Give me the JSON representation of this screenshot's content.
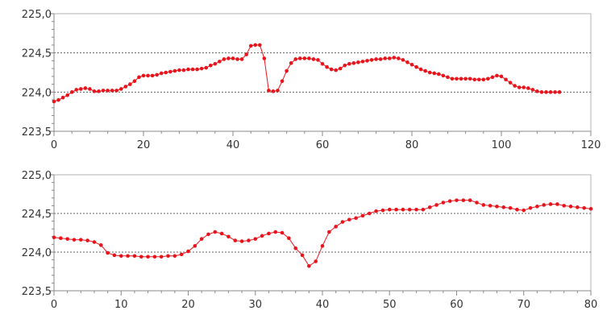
{
  "colors": {
    "series": "#e8141b",
    "grid": "#666666",
    "axis": "#888888",
    "background": "#ffffff"
  },
  "chart_data": [
    {
      "type": "line",
      "title": "",
      "xlabel": "",
      "ylabel": "",
      "xlim": [
        0,
        120
      ],
      "ylim": [
        223.5,
        225.0
      ],
      "xticks": [
        0,
        20,
        40,
        60,
        80,
        100,
        120
      ],
      "xtick_labels": [
        "0",
        "20",
        "40",
        "60",
        "80",
        "100",
        "120"
      ],
      "yticks": [
        223.5,
        224.0,
        224.5,
        225.0
      ],
      "ytick_labels": [
        "223,5",
        "224,0",
        "224,5",
        "225,0"
      ],
      "grid": "horizontal dashed at 224,0 and 224,5",
      "legend": "none",
      "series": [
        {
          "color": "#e8141b",
          "x": [
            0,
            1,
            2,
            3,
            4,
            5,
            6,
            7,
            8,
            9,
            10,
            11,
            12,
            13,
            14,
            15,
            16,
            17,
            18,
            19,
            20,
            21,
            22,
            23,
            24,
            25,
            26,
            27,
            28,
            29,
            30,
            31,
            32,
            33,
            34,
            35,
            36,
            37,
            38,
            39,
            40,
            41,
            42,
            43,
            44,
            45,
            46,
            47,
            48,
            49,
            50,
            51,
            52,
            53,
            54,
            55,
            56,
            57,
            58,
            59,
            60,
            61,
            62,
            63,
            64,
            65,
            66,
            67,
            68,
            69,
            70,
            71,
            72,
            73,
            74,
            75,
            76,
            77,
            78,
            79,
            80,
            81,
            82,
            83,
            84,
            85,
            86,
            87,
            88,
            89,
            90,
            91,
            92,
            93,
            94,
            95,
            96,
            97,
            98,
            99,
            100,
            101,
            102,
            103,
            104,
            105,
            106,
            107,
            108,
            109,
            110,
            111,
            112,
            113
          ],
          "y": [
            223.88,
            223.9,
            223.93,
            223.96,
            224.0,
            224.03,
            224.04,
            224.05,
            224.04,
            224.01,
            224.01,
            224.02,
            224.02,
            224.02,
            224.02,
            224.04,
            224.07,
            224.1,
            224.14,
            224.19,
            224.21,
            224.21,
            224.21,
            224.22,
            224.24,
            224.25,
            224.26,
            224.27,
            224.28,
            224.28,
            224.29,
            224.29,
            224.29,
            224.3,
            224.31,
            224.34,
            224.36,
            224.39,
            224.42,
            224.43,
            224.43,
            224.42,
            224.42,
            224.48,
            224.59,
            224.6,
            224.6,
            224.43,
            224.02,
            224.01,
            224.02,
            224.14,
            224.27,
            224.37,
            224.42,
            224.43,
            224.43,
            224.43,
            224.42,
            224.41,
            224.36,
            224.32,
            224.29,
            224.28,
            224.3,
            224.34,
            224.36,
            224.37,
            224.38,
            224.39,
            224.4,
            224.41,
            224.42,
            224.42,
            224.43,
            224.43,
            224.44,
            224.43,
            224.41,
            224.38,
            224.35,
            224.32,
            224.29,
            224.27,
            224.25,
            224.24,
            224.23,
            224.21,
            224.19,
            224.17,
            224.17,
            224.17,
            224.17,
            224.17,
            224.16,
            224.16,
            224.16,
            224.17,
            224.19,
            224.21,
            224.2,
            224.16,
            224.12,
            224.08,
            224.06,
            224.06,
            224.05,
            224.03,
            224.01,
            224.0,
            224.0,
            224.0,
            224.0,
            224.0
          ]
        }
      ]
    },
    {
      "type": "line",
      "title": "",
      "xlabel": "",
      "ylabel": "",
      "xlim": [
        0,
        80
      ],
      "ylim": [
        223.5,
        225.0
      ],
      "xticks": [
        0,
        10,
        20,
        30,
        40,
        50,
        60,
        70,
        80
      ],
      "xtick_labels": [
        "0",
        "10",
        "20",
        "30",
        "40",
        "50",
        "60",
        "70",
        "80"
      ],
      "yticks": [
        223.5,
        224.0,
        224.5,
        225.0
      ],
      "ytick_labels": [
        "223,5",
        "224,0",
        "224,5",
        "225,0"
      ],
      "grid": "horizontal dashed at 224,0 and 224,5",
      "legend": "none",
      "series": [
        {
          "color": "#e8141b",
          "x": [
            0,
            1,
            2,
            3,
            4,
            5,
            6,
            7,
            8,
            9,
            10,
            11,
            12,
            13,
            14,
            15,
            16,
            17,
            18,
            19,
            20,
            21,
            22,
            23,
            24,
            25,
            26,
            27,
            28,
            29,
            30,
            31,
            32,
            33,
            34,
            35,
            36,
            37,
            38,
            39,
            40,
            41,
            42,
            43,
            44,
            45,
            46,
            47,
            48,
            49,
            50,
            51,
            52,
            53,
            54,
            55,
            56,
            57,
            58,
            59,
            60,
            61,
            62,
            63,
            64,
            65,
            66,
            67,
            68,
            69,
            70,
            71,
            72,
            73,
            74,
            75,
            76,
            77,
            78,
            79,
            80
          ],
          "y": [
            224.19,
            224.18,
            224.17,
            224.16,
            224.16,
            224.15,
            224.13,
            224.09,
            223.99,
            223.96,
            223.95,
            223.95,
            223.95,
            223.94,
            223.94,
            223.94,
            223.94,
            223.95,
            223.95,
            223.97,
            224.01,
            224.08,
            224.17,
            224.23,
            224.26,
            224.24,
            224.2,
            224.15,
            224.14,
            224.15,
            224.17,
            224.21,
            224.24,
            224.26,
            224.25,
            224.18,
            224.05,
            223.96,
            223.82,
            223.88,
            224.08,
            224.26,
            224.33,
            224.39,
            224.42,
            224.44,
            224.47,
            224.5,
            224.53,
            224.54,
            224.55,
            224.55,
            224.55,
            224.55,
            224.55,
            224.55,
            224.58,
            224.61,
            224.64,
            224.66,
            224.67,
            224.67,
            224.67,
            224.64,
            224.61,
            224.6,
            224.59,
            224.58,
            224.57,
            224.55,
            224.54,
            224.57,
            224.59,
            224.61,
            224.62,
            224.62,
            224.6,
            224.59,
            224.58,
            224.57,
            224.56
          ]
        }
      ]
    }
  ]
}
